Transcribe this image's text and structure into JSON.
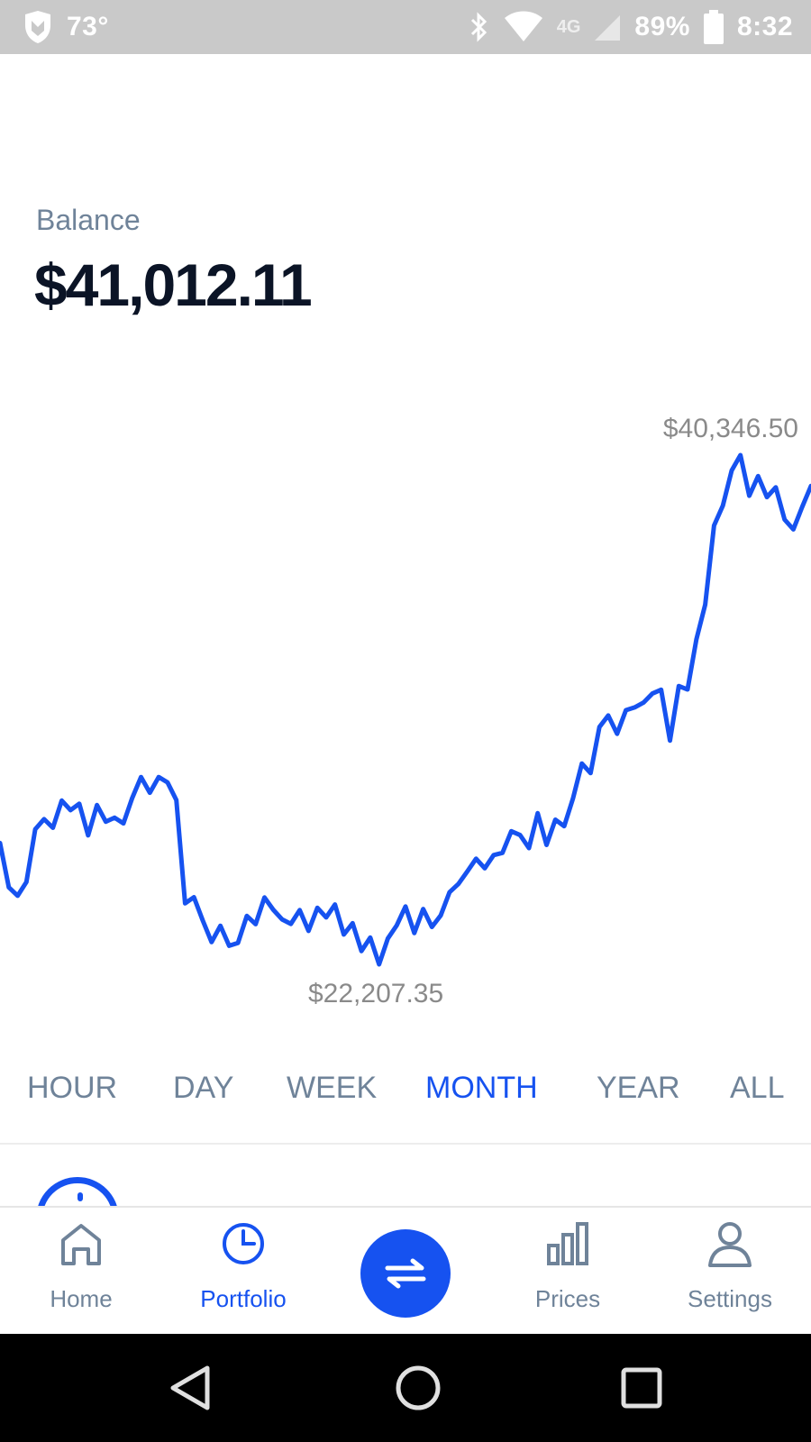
{
  "status_bar": {
    "temperature": "73°",
    "network": "4G",
    "battery": "89%",
    "time": "8:32"
  },
  "balance": {
    "label": "Balance",
    "value": "$41,012.11"
  },
  "chart": {
    "high_label": "$40,346.50",
    "low_label": "$22,207.35",
    "line_color": "#1652f0"
  },
  "chart_data": {
    "type": "line",
    "title": "",
    "xlabel": "",
    "ylabel": "",
    "series": [
      {
        "values": [
          26530,
          24950,
          24650,
          25140,
          27020,
          27380,
          27070,
          28040,
          27700,
          27930,
          26800,
          27880,
          27290,
          27430,
          27230,
          28130,
          28880,
          28320,
          28880,
          28690,
          28060,
          24380,
          24600,
          23770,
          23000,
          23580,
          22870,
          22970,
          23930,
          23640,
          24590,
          24150,
          23810,
          23650,
          24140,
          23400,
          24220,
          23880,
          24340,
          23270,
          23670,
          22680,
          23160,
          22207,
          23130,
          23590,
          24270,
          23320,
          24180,
          23540,
          23950,
          24780,
          25070,
          25510,
          25970,
          25630,
          26100,
          26180,
          26950,
          26810,
          26350,
          27590,
          26460,
          27360,
          27130,
          28120,
          29360,
          29020,
          30660,
          31070,
          30420,
          31260,
          31360,
          31530,
          31850,
          31990,
          30180,
          32120,
          32000,
          33780,
          35020,
          37840,
          38550,
          39800,
          40346,
          38900,
          39600,
          38850,
          39200,
          38050,
          37700,
          38500,
          39250
        ]
      }
    ],
    "ylim": [
      22207.35,
      40346.5
    ],
    "annotations": [
      "$40,346.50",
      "$22,207.35"
    ],
    "grid": false,
    "legend": "none"
  },
  "time_tabs": [
    {
      "label": "HOUR",
      "active": false
    },
    {
      "label": "DAY",
      "active": false
    },
    {
      "label": "WEEK",
      "active": false
    },
    {
      "label": "MONTH",
      "active": true
    },
    {
      "label": "YEAR",
      "active": false
    },
    {
      "label": "ALL",
      "active": false
    }
  ],
  "bottom_nav": {
    "home": "Home",
    "portfolio": "Portfolio",
    "prices": "Prices",
    "settings": "Settings",
    "active": "Portfolio"
  },
  "icons": {
    "status": [
      "shield-icon",
      "bluetooth-icon",
      "wifi-icon",
      "signal-icon",
      "battery-icon"
    ],
    "nav": [
      "home-icon",
      "pie-chart-icon",
      "swap-icon",
      "bar-chart-icon",
      "user-icon"
    ],
    "android": [
      "back-icon",
      "home-circle-icon",
      "recents-icon"
    ]
  }
}
